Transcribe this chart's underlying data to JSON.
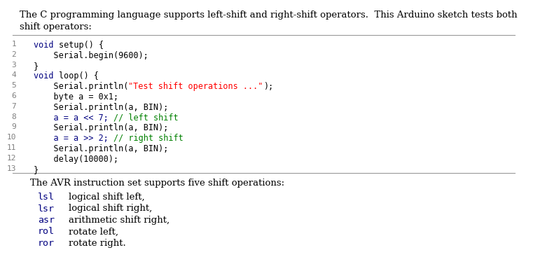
{
  "bg_color": "#ffffff",
  "intro_line1": "The C programming language supports left-shift and right-shift operators.  This Arduino sketch tests both",
  "intro_line2": "shift operators:",
  "code_lines": [
    {
      "num": "1",
      "segments": [
        {
          "t": "void ",
          "c": "#000080"
        },
        {
          "t": "setup() {",
          "c": "#000000"
        }
      ]
    },
    {
      "num": "2",
      "segments": [
        {
          "t": "    Serial.begin(9600);",
          "c": "#000000"
        }
      ]
    },
    {
      "num": "3",
      "segments": [
        {
          "t": "}",
          "c": "#000000"
        }
      ]
    },
    {
      "num": "4",
      "segments": [
        {
          "t": "void ",
          "c": "#000080"
        },
        {
          "t": "loop() {",
          "c": "#000000"
        }
      ]
    },
    {
      "num": "5",
      "segments": [
        {
          "t": "    Serial.println(",
          "c": "#000000"
        },
        {
          "t": "\"Test shift operations ...\"",
          "c": "#ff0000"
        },
        {
          "t": ");",
          "c": "#000000"
        }
      ]
    },
    {
      "num": "6",
      "segments": [
        {
          "t": "    byte a = 0x1;",
          "c": "#000000"
        }
      ]
    },
    {
      "num": "7",
      "segments": [
        {
          "t": "    Serial.println(a, BIN);",
          "c": "#000000"
        }
      ]
    },
    {
      "num": "8",
      "segments": [
        {
          "t": "    a = a << 7; ",
          "c": "#000080"
        },
        {
          "t": "// left shift",
          "c": "#008000"
        }
      ]
    },
    {
      "num": "9",
      "segments": [
        {
          "t": "    Serial.println(a, BIN);",
          "c": "#000000"
        }
      ]
    },
    {
      "num": "10",
      "segments": [
        {
          "t": "    a = a >> 2; ",
          "c": "#000080"
        },
        {
          "t": "// right shift",
          "c": "#008000"
        }
      ]
    },
    {
      "num": "11",
      "segments": [
        {
          "t": "    Serial.println(a, BIN);",
          "c": "#000000"
        }
      ]
    },
    {
      "num": "12",
      "segments": [
        {
          "t": "    delay(10000);",
          "c": "#000000"
        }
      ]
    },
    {
      "num": "13",
      "segments": [
        {
          "t": "}",
          "c": "#000000"
        }
      ]
    }
  ],
  "avr_title": "The AVR instruction set supports five shift operations:",
  "avr_ops": [
    {
      "cmd": "lsl",
      "desc": "logical shift left,"
    },
    {
      "cmd": "lsr",
      "desc": "logical shift right,"
    },
    {
      "cmd": "asr",
      "desc": "arithmetic shift right,"
    },
    {
      "cmd": "rol",
      "desc": "rotate left,"
    },
    {
      "cmd": "ror",
      "desc": "rotate right."
    }
  ],
  "cmd_color": "#000080",
  "line_num_color": "#808080",
  "text_color": "#000000",
  "rule_color": "#999999",
  "intro_fontsize": 9.5,
  "code_fontsize": 8.5,
  "avr_fontsize": 9.5
}
